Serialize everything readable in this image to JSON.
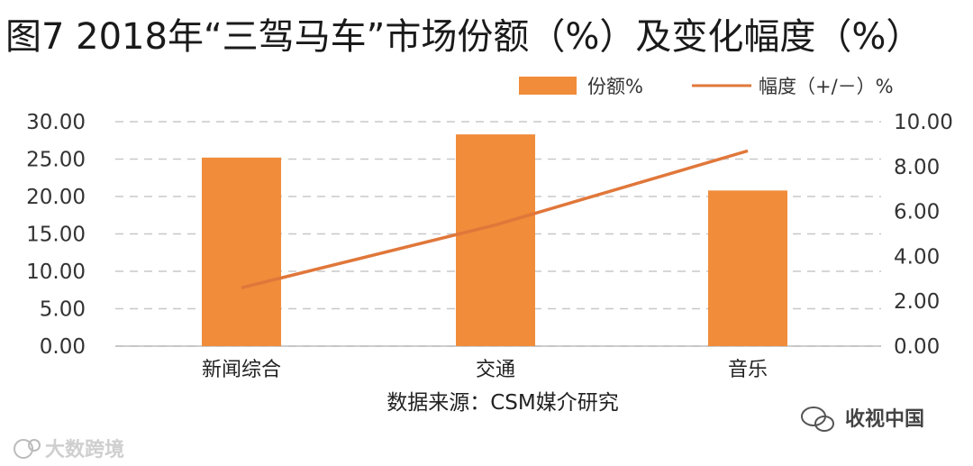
{
  "chart_data": {
    "type": "bar",
    "title": "图7 2018年“三驾马车”市场份额（%）及变化幅度（%）",
    "categories": [
      "新闻综合",
      "交通",
      "音乐"
    ],
    "series": [
      {
        "name": "份额%",
        "type": "bar",
        "axis": "left",
        "values": [
          25.2,
          28.3,
          20.8
        ]
      },
      {
        "name": "幅度（+/－）%",
        "type": "line",
        "axis": "right",
        "values": [
          2.6,
          5.4,
          8.7
        ]
      }
    ],
    "y_left": {
      "ticks": [
        "0.00",
        "5.00",
        "10.00",
        "15.00",
        "20.00",
        "25.00",
        "30.00"
      ],
      "ylim": [
        0,
        30
      ]
    },
    "y_right": {
      "ticks": [
        "0.00",
        "2.00",
        "4.00",
        "6.00",
        "8.00",
        "10.00"
      ],
      "ylim": [
        0,
        10
      ]
    },
    "grid": true,
    "legend_position": "top-right",
    "source": "数据来源：CSM媒介研究",
    "colors": {
      "bar": "#F08C3A",
      "line": "#E0773A",
      "grid": "#c8c8c8"
    }
  },
  "watermarks": {
    "right": "收视中国",
    "left": "大数跨境"
  }
}
